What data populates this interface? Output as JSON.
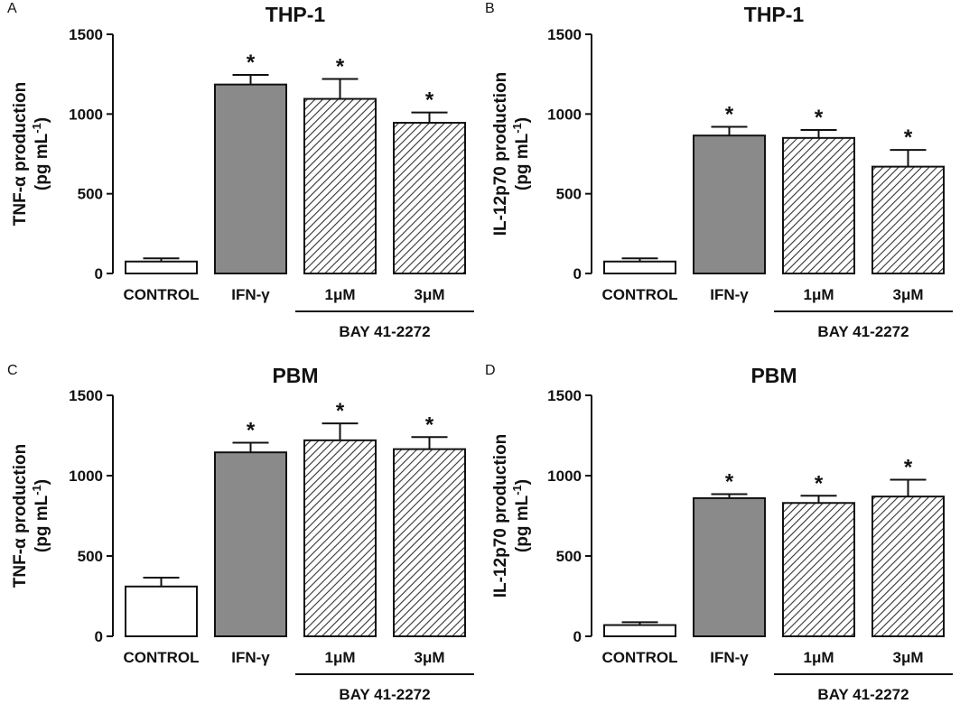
{
  "chart_data": [
    {
      "panel": "A",
      "type": "bar",
      "title": "THP-1",
      "ylabel_line1": "TNF-α production",
      "ylabel_line2": "(pg mL",
      "ylabel_sup": "-1",
      "ylabel_close": ")",
      "ylim": [
        0,
        1500
      ],
      "yticks": [
        "0",
        "500",
        "1000",
        "1500"
      ],
      "categories": [
        "CONTROL",
        "IFN-γ",
        "1μM",
        "3μM"
      ],
      "values": [
        75,
        1185,
        1095,
        945
      ],
      "errors": [
        20,
        60,
        125,
        65
      ],
      "significance": [
        "",
        "*",
        "*",
        "*"
      ],
      "fills": [
        "white",
        "gray",
        "hatch",
        "hatch"
      ],
      "group_label": "BAY 41-2272"
    },
    {
      "panel": "B",
      "type": "bar",
      "title": "THP-1",
      "ylabel_line1": "IL-12p70 production",
      "ylabel_line2": "(pg mL",
      "ylabel_sup": "-1",
      "ylabel_close": ")",
      "ylim": [
        0,
        1500
      ],
      "yticks": [
        "0",
        "500",
        "1000",
        "1500"
      ],
      "categories": [
        "CONTROL",
        "IFN-γ",
        "1μM",
        "3μM"
      ],
      "values": [
        75,
        865,
        850,
        670
      ],
      "errors": [
        20,
        55,
        50,
        105
      ],
      "significance": [
        "",
        "*",
        "*",
        "*"
      ],
      "fills": [
        "white",
        "gray",
        "hatch",
        "hatch"
      ],
      "group_label": "BAY 41-2272"
    },
    {
      "panel": "C",
      "type": "bar",
      "title": "PBM",
      "ylabel_line1": "TNF-α production",
      "ylabel_line2": "(pg mL",
      "ylabel_sup": "-1",
      "ylabel_close": ")",
      "ylim": [
        0,
        1500
      ],
      "yticks": [
        "0",
        "500",
        "1000",
        "1500"
      ],
      "categories": [
        "CONTROL",
        "IFN-γ",
        "1μM",
        "3μM"
      ],
      "values": [
        310,
        1145,
        1220,
        1165
      ],
      "errors": [
        55,
        60,
        105,
        75
      ],
      "significance": [
        "",
        "*",
        "*",
        "*"
      ],
      "fills": [
        "white",
        "gray",
        "hatch",
        "hatch"
      ],
      "group_label": "BAY 41-2272"
    },
    {
      "panel": "D",
      "type": "bar",
      "title": "PBM",
      "ylabel_line1": "IL-12p70 production",
      "ylabel_line2": "(pg mL",
      "ylabel_sup": "-1",
      "ylabel_close": ")",
      "ylim": [
        0,
        1500
      ],
      "yticks": [
        "0",
        "500",
        "1000",
        "1500"
      ],
      "categories": [
        "CONTROL",
        "IFN-γ",
        "1μM",
        "3μM"
      ],
      "values": [
        70,
        860,
        830,
        870
      ],
      "errors": [
        18,
        25,
        45,
        105
      ],
      "significance": [
        "",
        "*",
        "*",
        "*"
      ],
      "fills": [
        "white",
        "gray",
        "hatch",
        "hatch"
      ],
      "group_label": "BAY 41-2272"
    }
  ],
  "colors": {
    "bar_gray": "#8a8a8a",
    "bar_white": "#ffffff",
    "stroke": "#111111",
    "hatch": "#333333"
  }
}
